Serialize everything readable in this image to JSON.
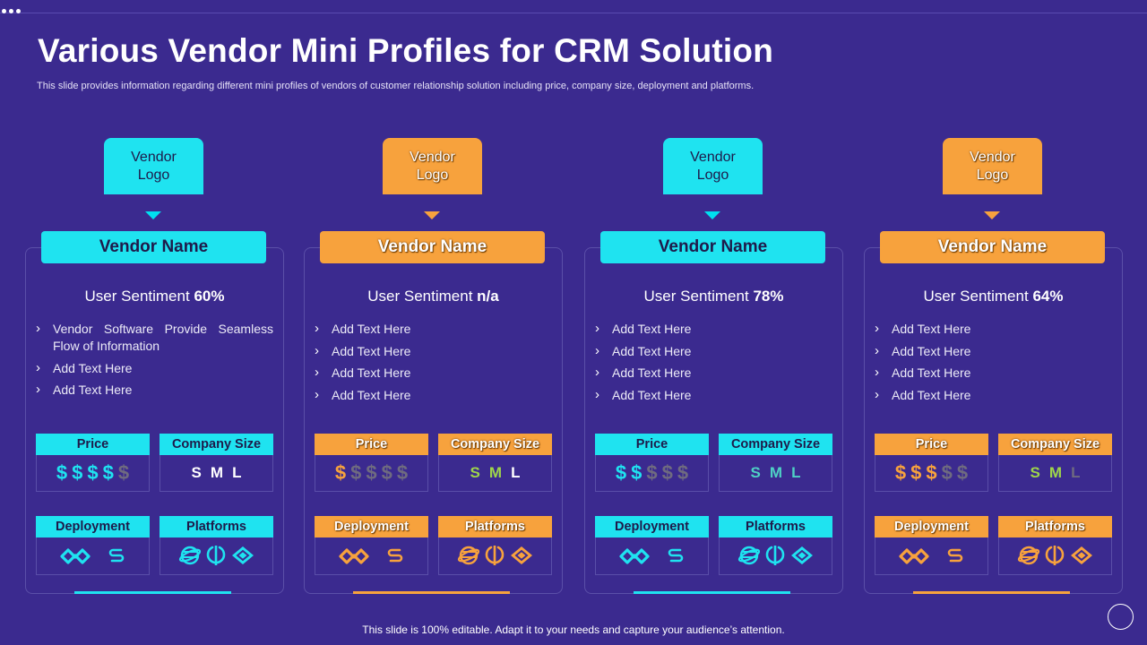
{
  "slide": {
    "title": "Various Vendor Mini Profiles for CRM Solution",
    "subtitle": "This slide provides information regarding different mini profiles of vendors of customer  relationship solution including price, company size, deployment  and platforms.",
    "footer": "This slide is 100% editable. Adapt it to your needs and capture your audience’s attention."
  },
  "labels": {
    "sentiment_prefix": "User Sentiment",
    "price": "Price",
    "company_size": "Company Size",
    "deployment": "Deployment",
    "platforms": "Platforms",
    "sizes": [
      "S",
      "M",
      "L"
    ],
    "currency_symbol": "$"
  },
  "colors": {
    "background": "#3b2a8f",
    "cyan": "#1fe3f0",
    "orange": "#f7a23d",
    "dim": "#6f6b80",
    "size_green": "#9fd64a",
    "size_teal": "#4fd1c5"
  },
  "vendors": [
    {
      "theme": "cyan",
      "logo_line1": "Vendor",
      "logo_line2": "Logo",
      "name": "Vendor Name",
      "sentiment": "60%",
      "bullets": [
        "Vendor Software Provide Seamless Flow of Information",
        "Add Text Here",
        "Add Text Here"
      ],
      "price_level": 4,
      "deployment_icons": [
        "deployment-cloud-icon",
        "deployment-web-icon"
      ],
      "platform_icons": [
        "platform-globe-icon",
        "platform-mobile-icon",
        "platform-desktop-icon"
      ]
    },
    {
      "theme": "orange",
      "logo_line1": "Vendor",
      "logo_line2": "Logo",
      "name": "Vendor Name",
      "sentiment": "n/a",
      "bullets": [
        "Add Text Here",
        "Add Text Here",
        "Add Text Here",
        "Add Text Here"
      ],
      "price_level": 1,
      "deployment_icons": [
        "deployment-cloud-icon",
        "deployment-web-icon"
      ],
      "platform_icons": [
        "platform-globe-icon",
        "platform-mobile-icon",
        "platform-desktop-icon"
      ]
    },
    {
      "theme": "cyan",
      "logo_line1": "Vendor",
      "logo_line2": "Logo",
      "name": "Vendor Name",
      "sentiment": "78%",
      "bullets": [
        "Add Text Here",
        "Add Text Here",
        "Add Text Here",
        "Add Text Here"
      ],
      "price_level": 2,
      "deployment_icons": [
        "deployment-cloud-icon",
        "deployment-web-icon"
      ],
      "platform_icons": [
        "platform-globe-icon",
        "platform-mobile-icon",
        "platform-desktop-icon"
      ]
    },
    {
      "theme": "orange",
      "logo_line1": "Vendor",
      "logo_line2": "Logo",
      "name": "Vendor Name",
      "sentiment": "64%",
      "bullets": [
        "Add Text Here",
        "Add Text Here",
        "Add Text Here",
        "Add Text Here"
      ],
      "price_level": 3,
      "deployment_icons": [
        "deployment-cloud-icon",
        "deployment-web-icon"
      ],
      "platform_icons": [
        "platform-globe-icon",
        "platform-mobile-icon",
        "platform-desktop-icon"
      ]
    }
  ]
}
